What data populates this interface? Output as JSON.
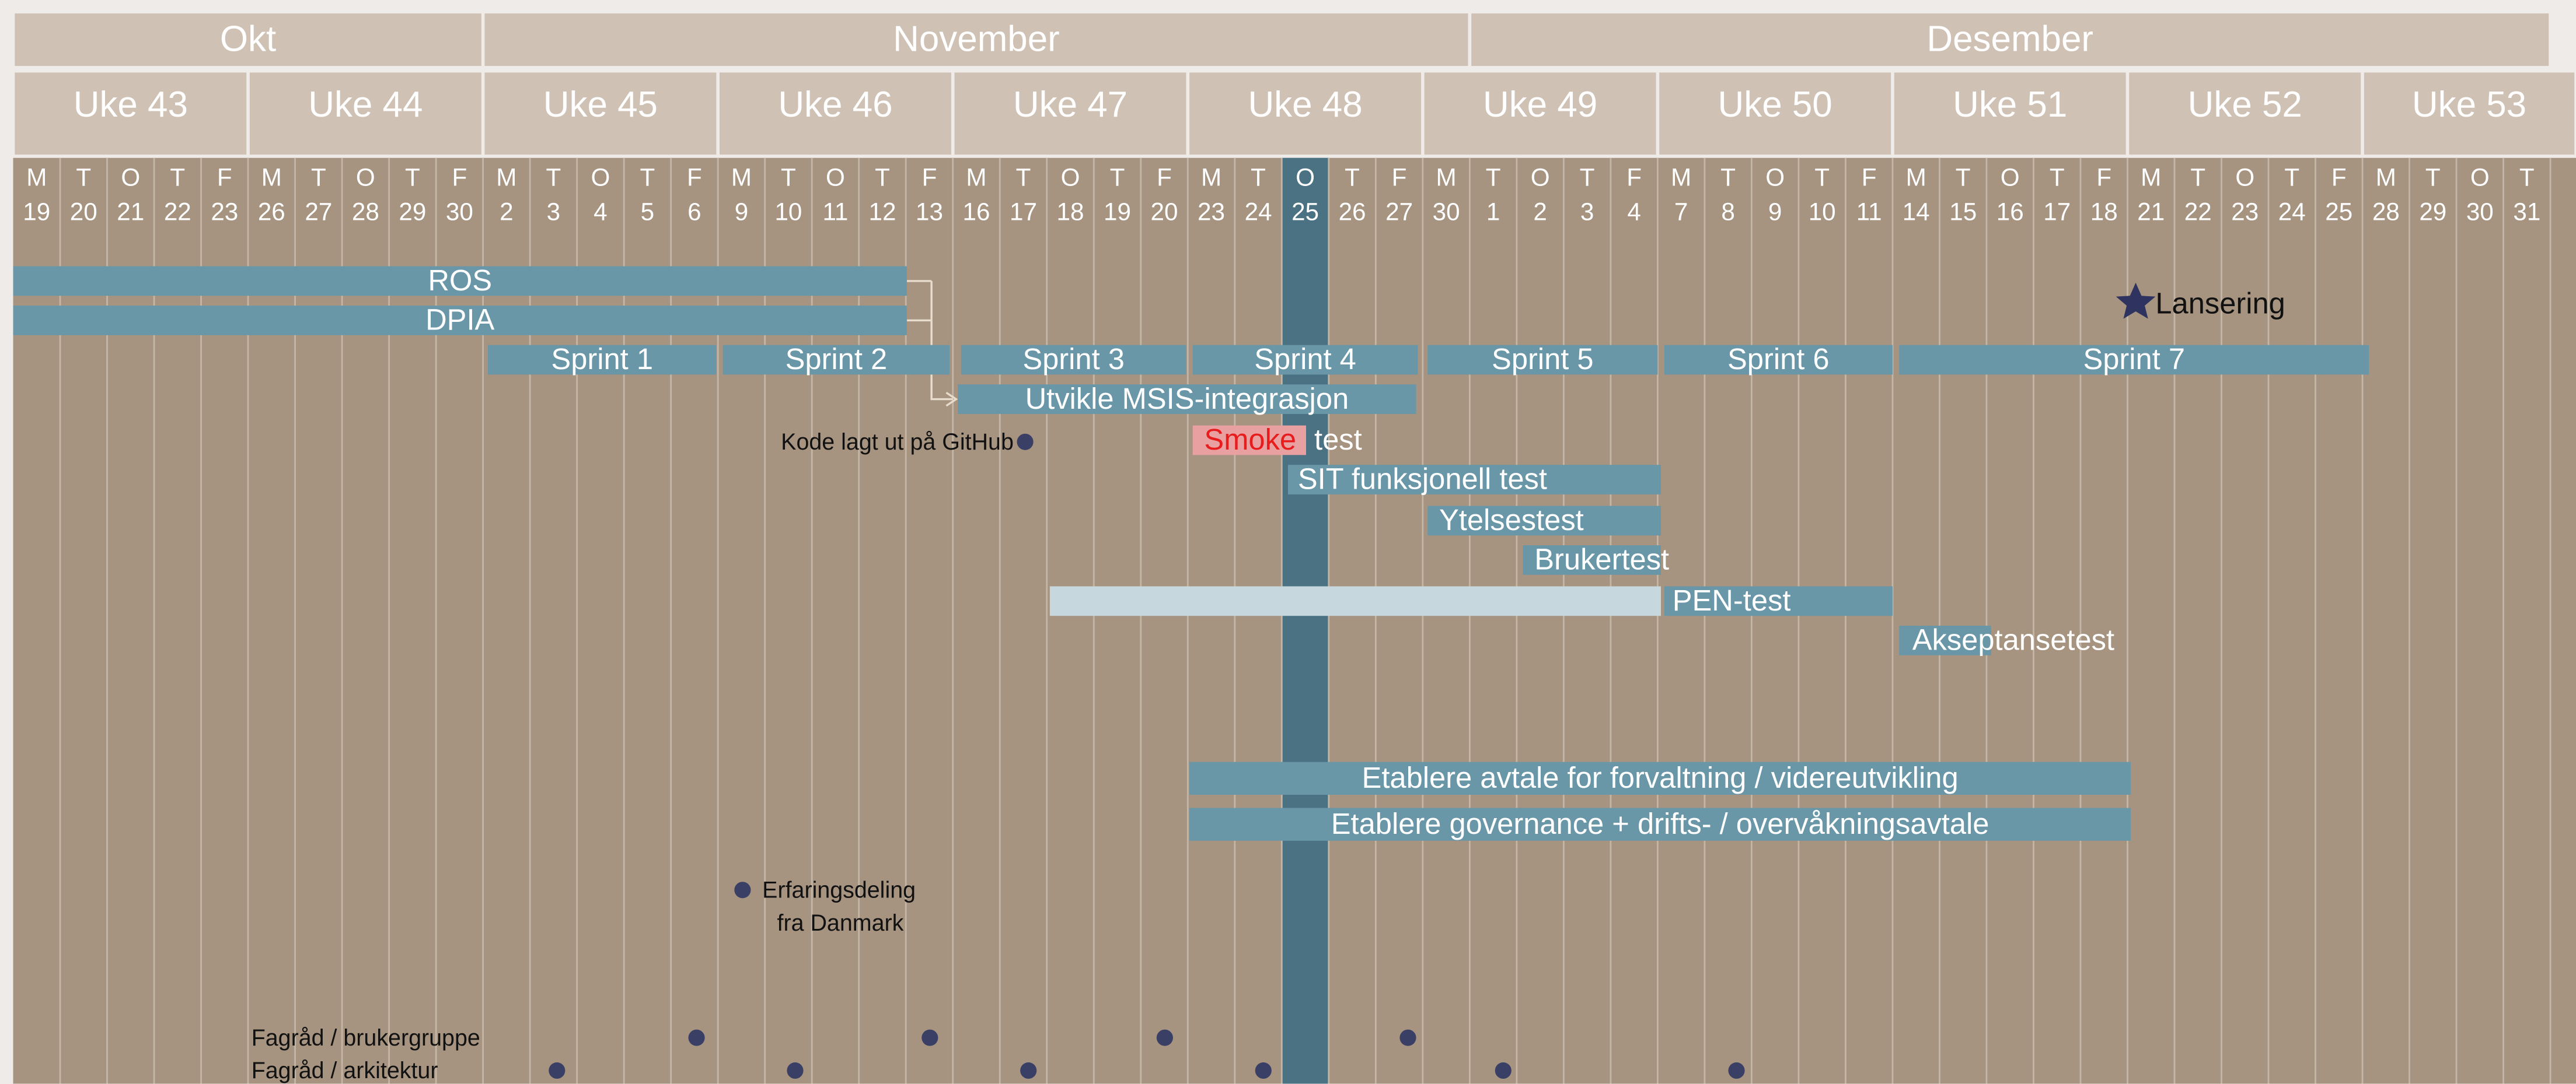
{
  "months": [
    "Okt",
    "November",
    "Desember"
  ],
  "weeks": [
    "Uke 43",
    "Uke 44",
    "Uke 45",
    "Uke 46",
    "Uke 47",
    "Uke 48",
    "Uke 49",
    "Uke 50",
    "Uke 51",
    "Uke 52",
    "Uke 53"
  ],
  "days": [
    {
      "letter": "M",
      "date": "19"
    },
    {
      "letter": "T",
      "date": "20"
    },
    {
      "letter": "O",
      "date": "21"
    },
    {
      "letter": "T",
      "date": "22"
    },
    {
      "letter": "F",
      "date": "23"
    },
    {
      "letter": "M",
      "date": "26"
    },
    {
      "letter": "T",
      "date": "27"
    },
    {
      "letter": "O",
      "date": "28"
    },
    {
      "letter": "T",
      "date": "29"
    },
    {
      "letter": "F",
      "date": "30"
    },
    {
      "letter": "M",
      "date": "2"
    },
    {
      "letter": "T",
      "date": "3"
    },
    {
      "letter": "O",
      "date": "4"
    },
    {
      "letter": "T",
      "date": "5"
    },
    {
      "letter": "F",
      "date": "6"
    },
    {
      "letter": "M",
      "date": "9"
    },
    {
      "letter": "T",
      "date": "10"
    },
    {
      "letter": "O",
      "date": "11"
    },
    {
      "letter": "T",
      "date": "12"
    },
    {
      "letter": "F",
      "date": "13"
    },
    {
      "letter": "M",
      "date": "16"
    },
    {
      "letter": "T",
      "date": "17"
    },
    {
      "letter": "O",
      "date": "18"
    },
    {
      "letter": "T",
      "date": "19"
    },
    {
      "letter": "F",
      "date": "20"
    },
    {
      "letter": "M",
      "date": "23"
    },
    {
      "letter": "T",
      "date": "24"
    },
    {
      "letter": "O",
      "date": "25"
    },
    {
      "letter": "T",
      "date": "26"
    },
    {
      "letter": "F",
      "date": "27"
    },
    {
      "letter": "M",
      "date": "30"
    },
    {
      "letter": "T",
      "date": "1"
    },
    {
      "letter": "O",
      "date": "2"
    },
    {
      "letter": "T",
      "date": "3"
    },
    {
      "letter": "F",
      "date": "4"
    },
    {
      "letter": "M",
      "date": "7"
    },
    {
      "letter": "T",
      "date": "8"
    },
    {
      "letter": "O",
      "date": "9"
    },
    {
      "letter": "T",
      "date": "10"
    },
    {
      "letter": "F",
      "date": "11"
    },
    {
      "letter": "M",
      "date": "14"
    },
    {
      "letter": "T",
      "date": "15"
    },
    {
      "letter": "O",
      "date": "16"
    },
    {
      "letter": "T",
      "date": "17"
    },
    {
      "letter": "F",
      "date": "18"
    },
    {
      "letter": "M",
      "date": "21"
    },
    {
      "letter": "T",
      "date": "22"
    },
    {
      "letter": "O",
      "date": "23"
    },
    {
      "letter": "T",
      "date": "24"
    },
    {
      "letter": "F",
      "date": "25"
    },
    {
      "letter": "M",
      "date": "28"
    },
    {
      "letter": "T",
      "date": "29"
    },
    {
      "letter": "O",
      "date": "30"
    },
    {
      "letter": "T",
      "date": "31"
    }
  ],
  "tasks": [
    "ROS",
    "DPIA",
    "Sprint 1",
    "Sprint 2",
    "Sprint 3",
    "Sprint 4",
    "Sprint 5",
    "Sprint 6",
    "Sprint 7",
    "Utvikle MSIS-integrasjon",
    "SIT funksjonell test",
    "Ytelsestest",
    "Brukertest",
    "PEN-test",
    "Akseptansetest",
    "Etablere avtale for forvaltning / videreutvikling",
    "Etablere governance + drifts- / overvåkningsavtale"
  ],
  "smoke_test": {
    "highlight": "Smoke",
    "rest": "test"
  },
  "milestones": [
    "Kode lagt ut på GitHub",
    "Lansering"
  ],
  "erfaringsdeling": [
    "Erfaringsdeling",
    "fra Danmark"
  ],
  "meetings": [
    "Fagråd / brukergruppe",
    "Fagråd / arkitektur"
  ]
}
